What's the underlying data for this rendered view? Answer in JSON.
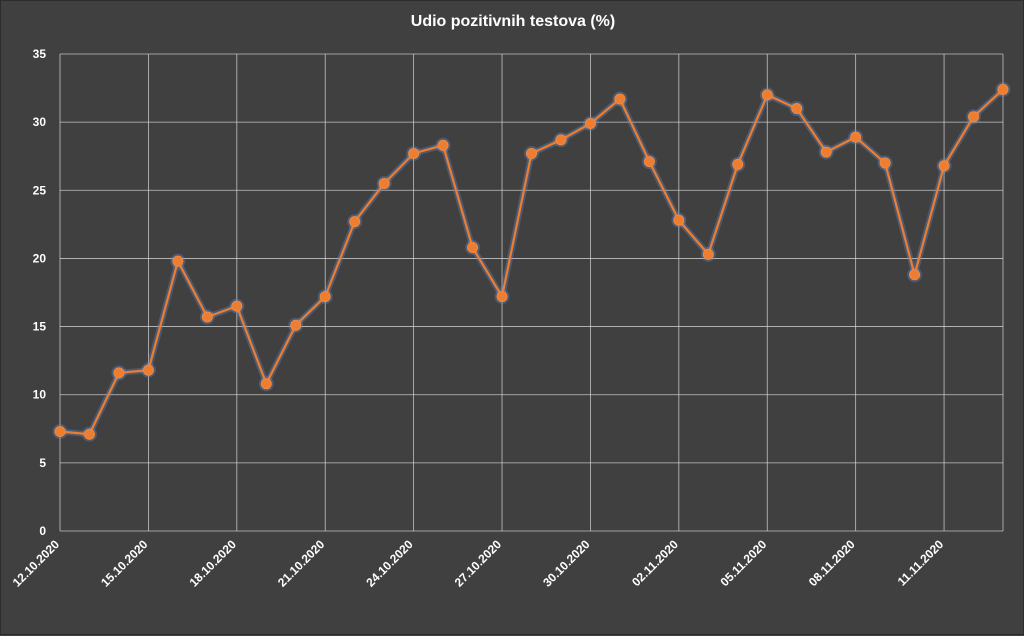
{
  "chart_data": {
    "type": "line",
    "title": "Udio pozitivnih testova (%)",
    "xlabel": "",
    "ylabel": "",
    "ylim": [
      0,
      35
    ],
    "yticks": [
      "0",
      "5",
      "10",
      "15",
      "20",
      "25",
      "30",
      "35"
    ],
    "xtick_labels": [
      "12.10.2020",
      "15.10.2020",
      "18.10.2020",
      "21.10.2020",
      "24.10.2020",
      "27.10.2020",
      "30.10.2020",
      "02.11.2020",
      "05.11.2020",
      "08.11.2020",
      "11.11.2020"
    ],
    "grid": true,
    "colors": {
      "background": "#404040",
      "series": "#ed7d31",
      "grid": "#d9d9d9",
      "text": "#ffffff"
    },
    "x": [
      "12.10.2020",
      "13.10.2020",
      "14.10.2020",
      "15.10.2020",
      "16.10.2020",
      "17.10.2020",
      "18.10.2020",
      "19.10.2020",
      "20.10.2020",
      "21.10.2020",
      "22.10.2020",
      "23.10.2020",
      "24.10.2020",
      "25.10.2020",
      "26.10.2020",
      "27.10.2020",
      "28.10.2020",
      "29.10.2020",
      "30.10.2020",
      "31.10.2020",
      "01.11.2020",
      "02.11.2020",
      "03.11.2020",
      "04.11.2020",
      "05.11.2020",
      "06.11.2020",
      "07.11.2020",
      "08.11.2020",
      "09.11.2020",
      "10.11.2020",
      "11.11.2020",
      "12.11.2020",
      "13.11.2020"
    ],
    "series": [
      {
        "values": [
          7.3,
          7.1,
          11.6,
          11.8,
          19.8,
          15.7,
          16.5,
          10.8,
          15.1,
          17.2,
          22.7,
          25.5,
          27.7,
          28.3,
          20.8,
          17.2,
          27.7,
          28.7,
          29.9,
          31.7,
          27.1,
          22.8,
          20.3,
          26.9,
          32.0,
          31.0,
          27.8,
          28.9,
          27.0,
          18.8,
          26.8,
          30.4,
          32.4
        ]
      }
    ]
  }
}
